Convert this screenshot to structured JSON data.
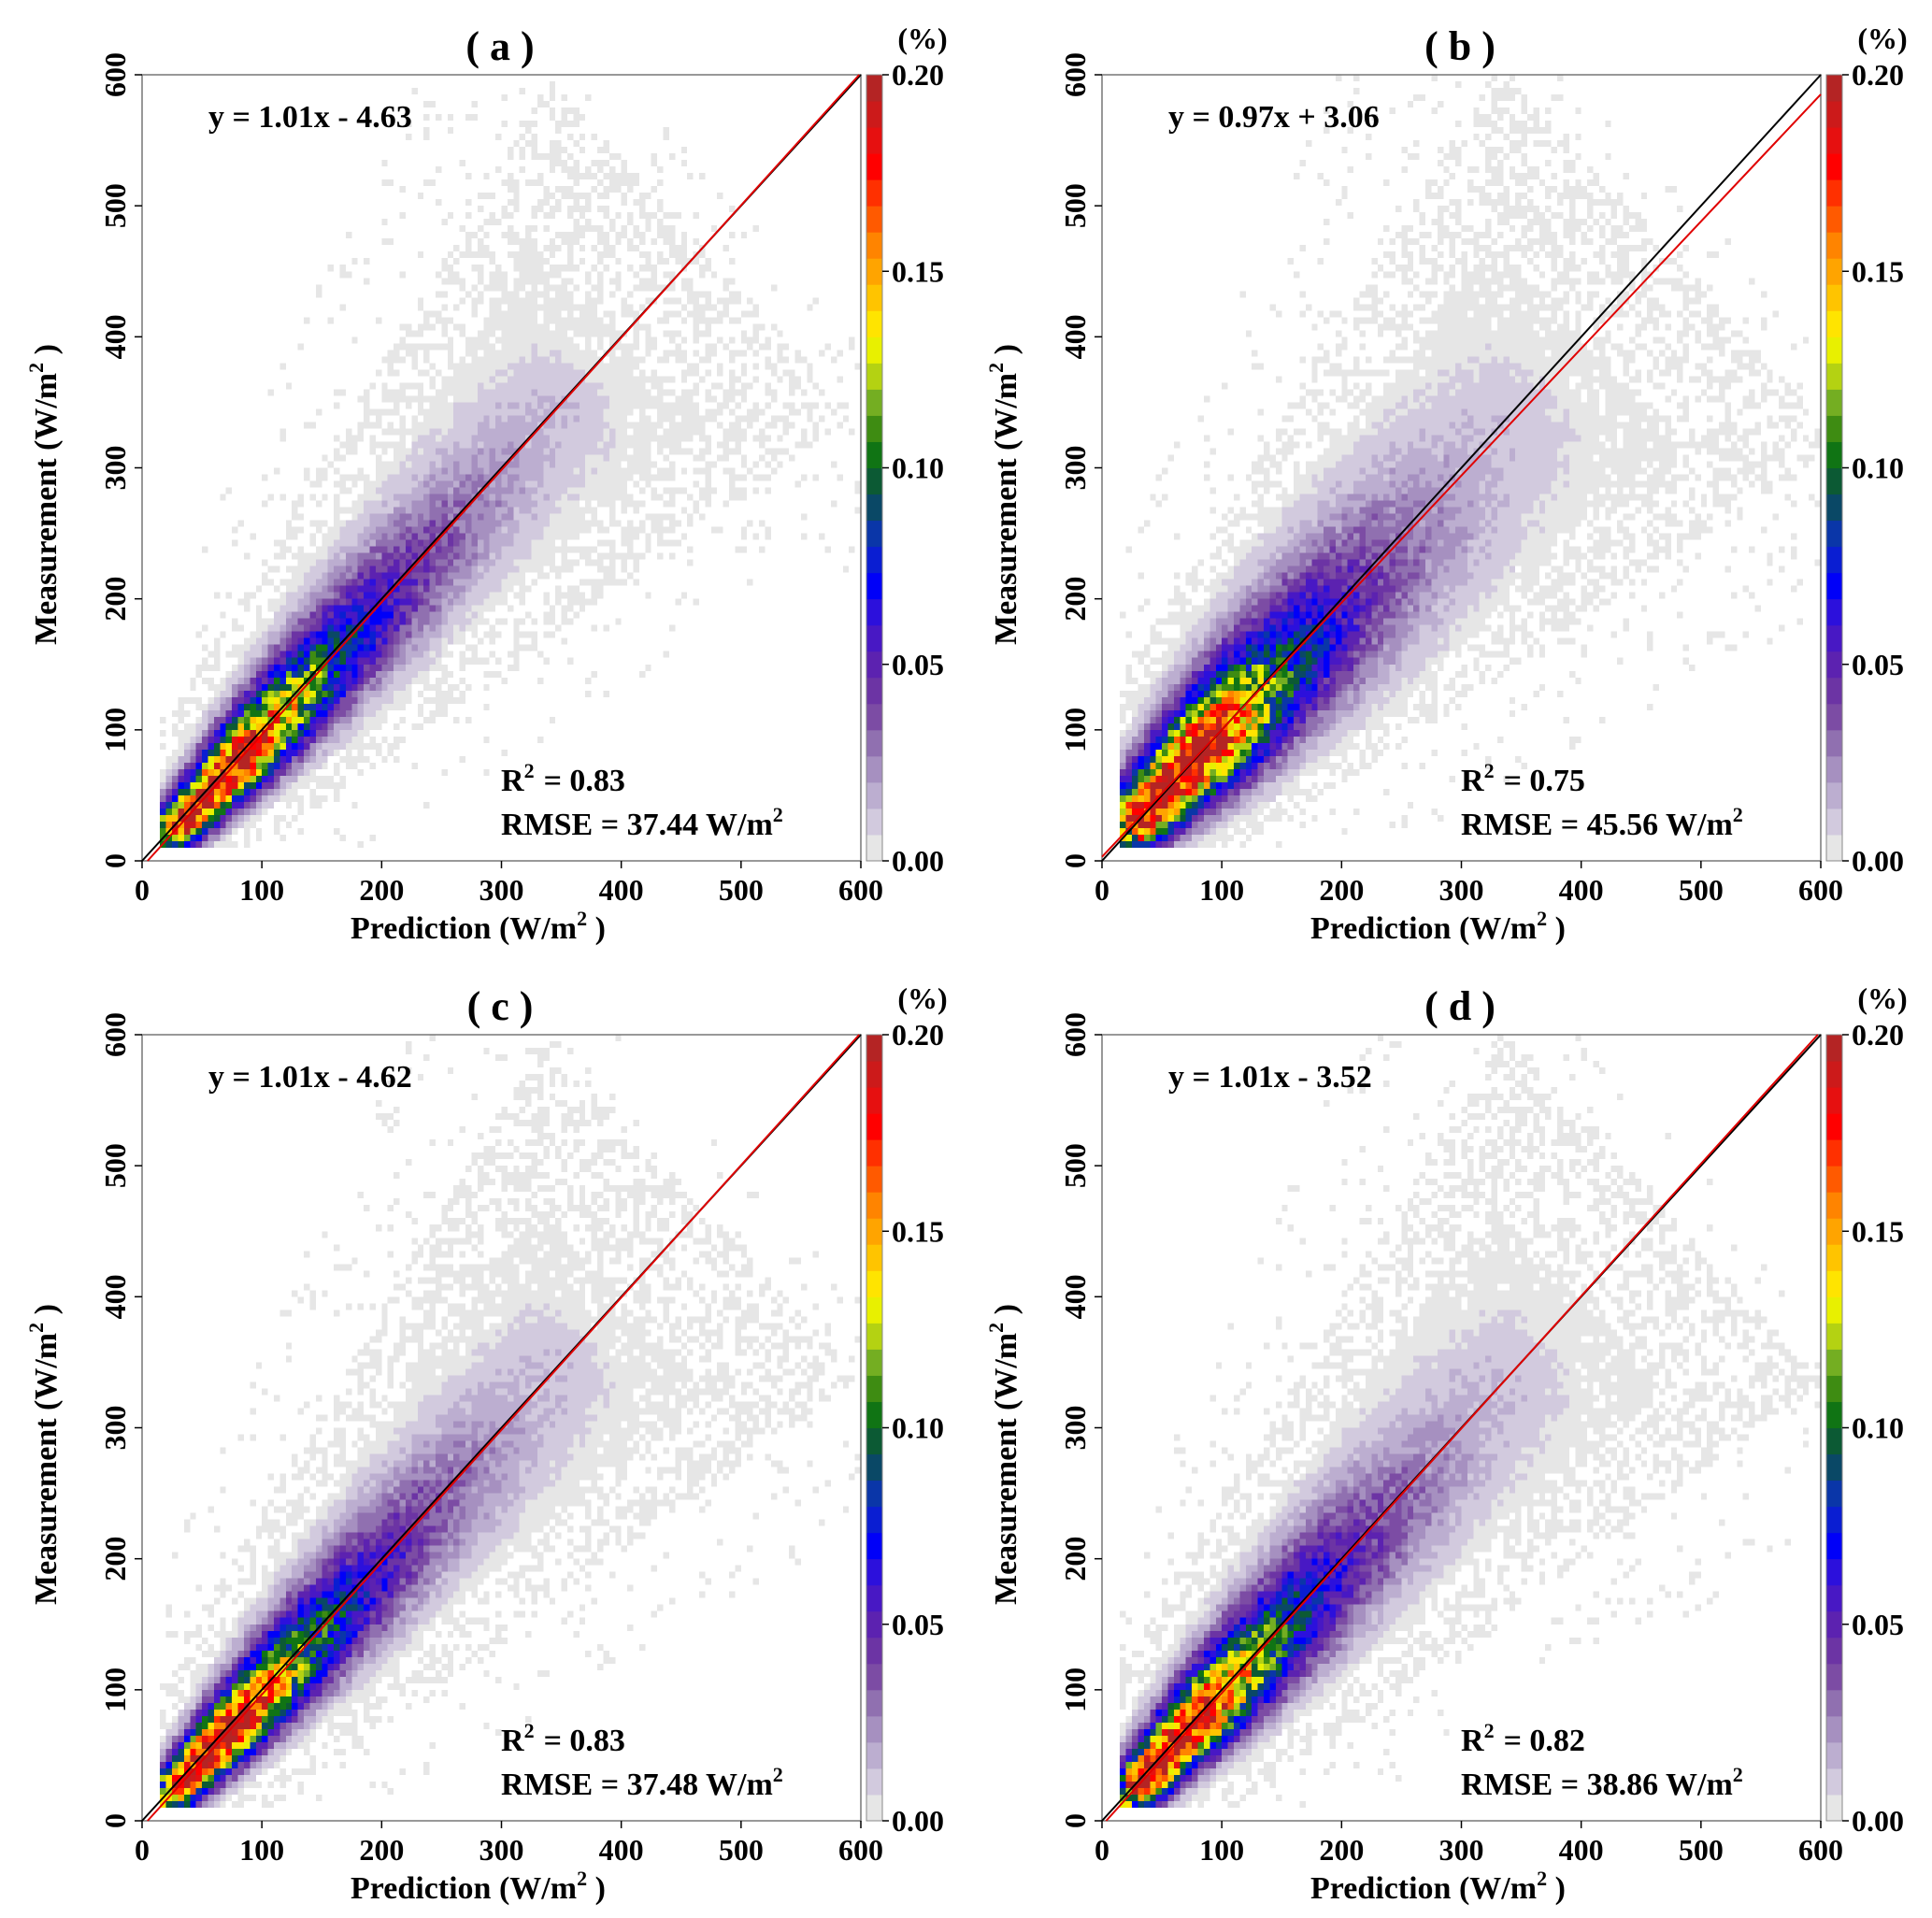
{
  "colorbar": {
    "unit_label": "(%)",
    "ticks": [
      "0.00",
      "0.05",
      "0.10",
      "0.15",
      "0.20"
    ],
    "range": [
      0,
      0.2
    ],
    "colors": [
      "#e6e6e6",
      "#d2cade",
      "#bcaed0",
      "#a690c0",
      "#9070b0",
      "#7c4ca4",
      "#6c34a4",
      "#5c22b0",
      "#4818c4",
      "#2c10dc",
      "#0000f8",
      "#0a1ed2",
      "#0a36a8",
      "#0a4866",
      "#0c5a34",
      "#107414",
      "#3e8c12",
      "#74ae22",
      "#b4d212",
      "#e8f000",
      "#ffe400",
      "#ffc400",
      "#ffa400",
      "#ff8400",
      "#ff5a00",
      "#ff3000",
      "#ff0000",
      "#e61010",
      "#cc1a1a",
      "#b42424"
    ]
  },
  "chart_data": [
    {
      "type": "heatmap",
      "title": "( a )",
      "xlabel": "Prediction (W/m",
      "ylabel": "Measurement (W/m",
      "label_sup": "2",
      "label_close": " )",
      "xlim": [
        0,
        600
      ],
      "ylim": [
        0,
        600
      ],
      "xticks": [
        "0",
        "100",
        "200",
        "300",
        "400",
        "500",
        "600"
      ],
      "yticks": [
        "0",
        "100",
        "200",
        "300",
        "400",
        "500",
        "600"
      ],
      "fit": {
        "slope": 1.01,
        "intercept": -4.63,
        "equation": "y = 1.01x - 4.63",
        "color": "#e00000"
      },
      "one_to_one_color": "#000000",
      "r2_label": "R",
      "r2_value": "= 0.83",
      "rmse": "RMSE = 37.44 W/m"
    },
    {
      "type": "heatmap",
      "title": "( b )",
      "xlabel": "Prediction (W/m",
      "ylabel": "Measurement (W/m",
      "label_sup": "2",
      "label_close": " )",
      "xlim": [
        0,
        600
      ],
      "ylim": [
        0,
        600
      ],
      "xticks": [
        "0",
        "100",
        "200",
        "300",
        "400",
        "500",
        "600"
      ],
      "yticks": [
        "0",
        "100",
        "200",
        "300",
        "400",
        "500",
        "600"
      ],
      "fit": {
        "slope": 0.97,
        "intercept": 3.06,
        "equation": "y = 0.97x + 3.06",
        "color": "#e00000"
      },
      "one_to_one_color": "#000000",
      "r2_label": "R",
      "r2_value": "= 0.75",
      "rmse": "RMSE = 45.56 W/m"
    },
    {
      "type": "heatmap",
      "title": "( c )",
      "xlabel": "Prediction (W/m",
      "ylabel": "Measurement (W/m",
      "label_sup": "2",
      "label_close": " )",
      "xlim": [
        0,
        600
      ],
      "ylim": [
        0,
        600
      ],
      "xticks": [
        "0",
        "100",
        "200",
        "300",
        "400",
        "500",
        "600"
      ],
      "yticks": [
        "0",
        "100",
        "200",
        "300",
        "400",
        "500",
        "600"
      ],
      "fit": {
        "slope": 1.01,
        "intercept": -4.62,
        "equation": "y = 1.01x - 4.62",
        "color": "#e00000"
      },
      "one_to_one_color": "#000000",
      "r2_label": "R",
      "r2_value": "= 0.83",
      "rmse": "RMSE = 37.48 W/m"
    },
    {
      "type": "heatmap",
      "title": "( d )",
      "xlabel": "Prediction (W/m",
      "ylabel": "Measurement (W/m",
      "label_sup": "2",
      "label_close": " )",
      "xlim": [
        0,
        600
      ],
      "ylim": [
        0,
        600
      ],
      "xticks": [
        "0",
        "100",
        "200",
        "300",
        "400",
        "500",
        "600"
      ],
      "yticks": [
        "0",
        "100",
        "200",
        "300",
        "400",
        "500",
        "600"
      ],
      "fit": {
        "slope": 1.01,
        "intercept": -3.52,
        "equation": "y = 1.01x - 3.52",
        "color": "#e00000"
      },
      "one_to_one_color": "#000000",
      "r2_label": "R",
      "r2_value": "= 0.82",
      "rmse": "RMSE = 38.86 W/m"
    }
  ]
}
